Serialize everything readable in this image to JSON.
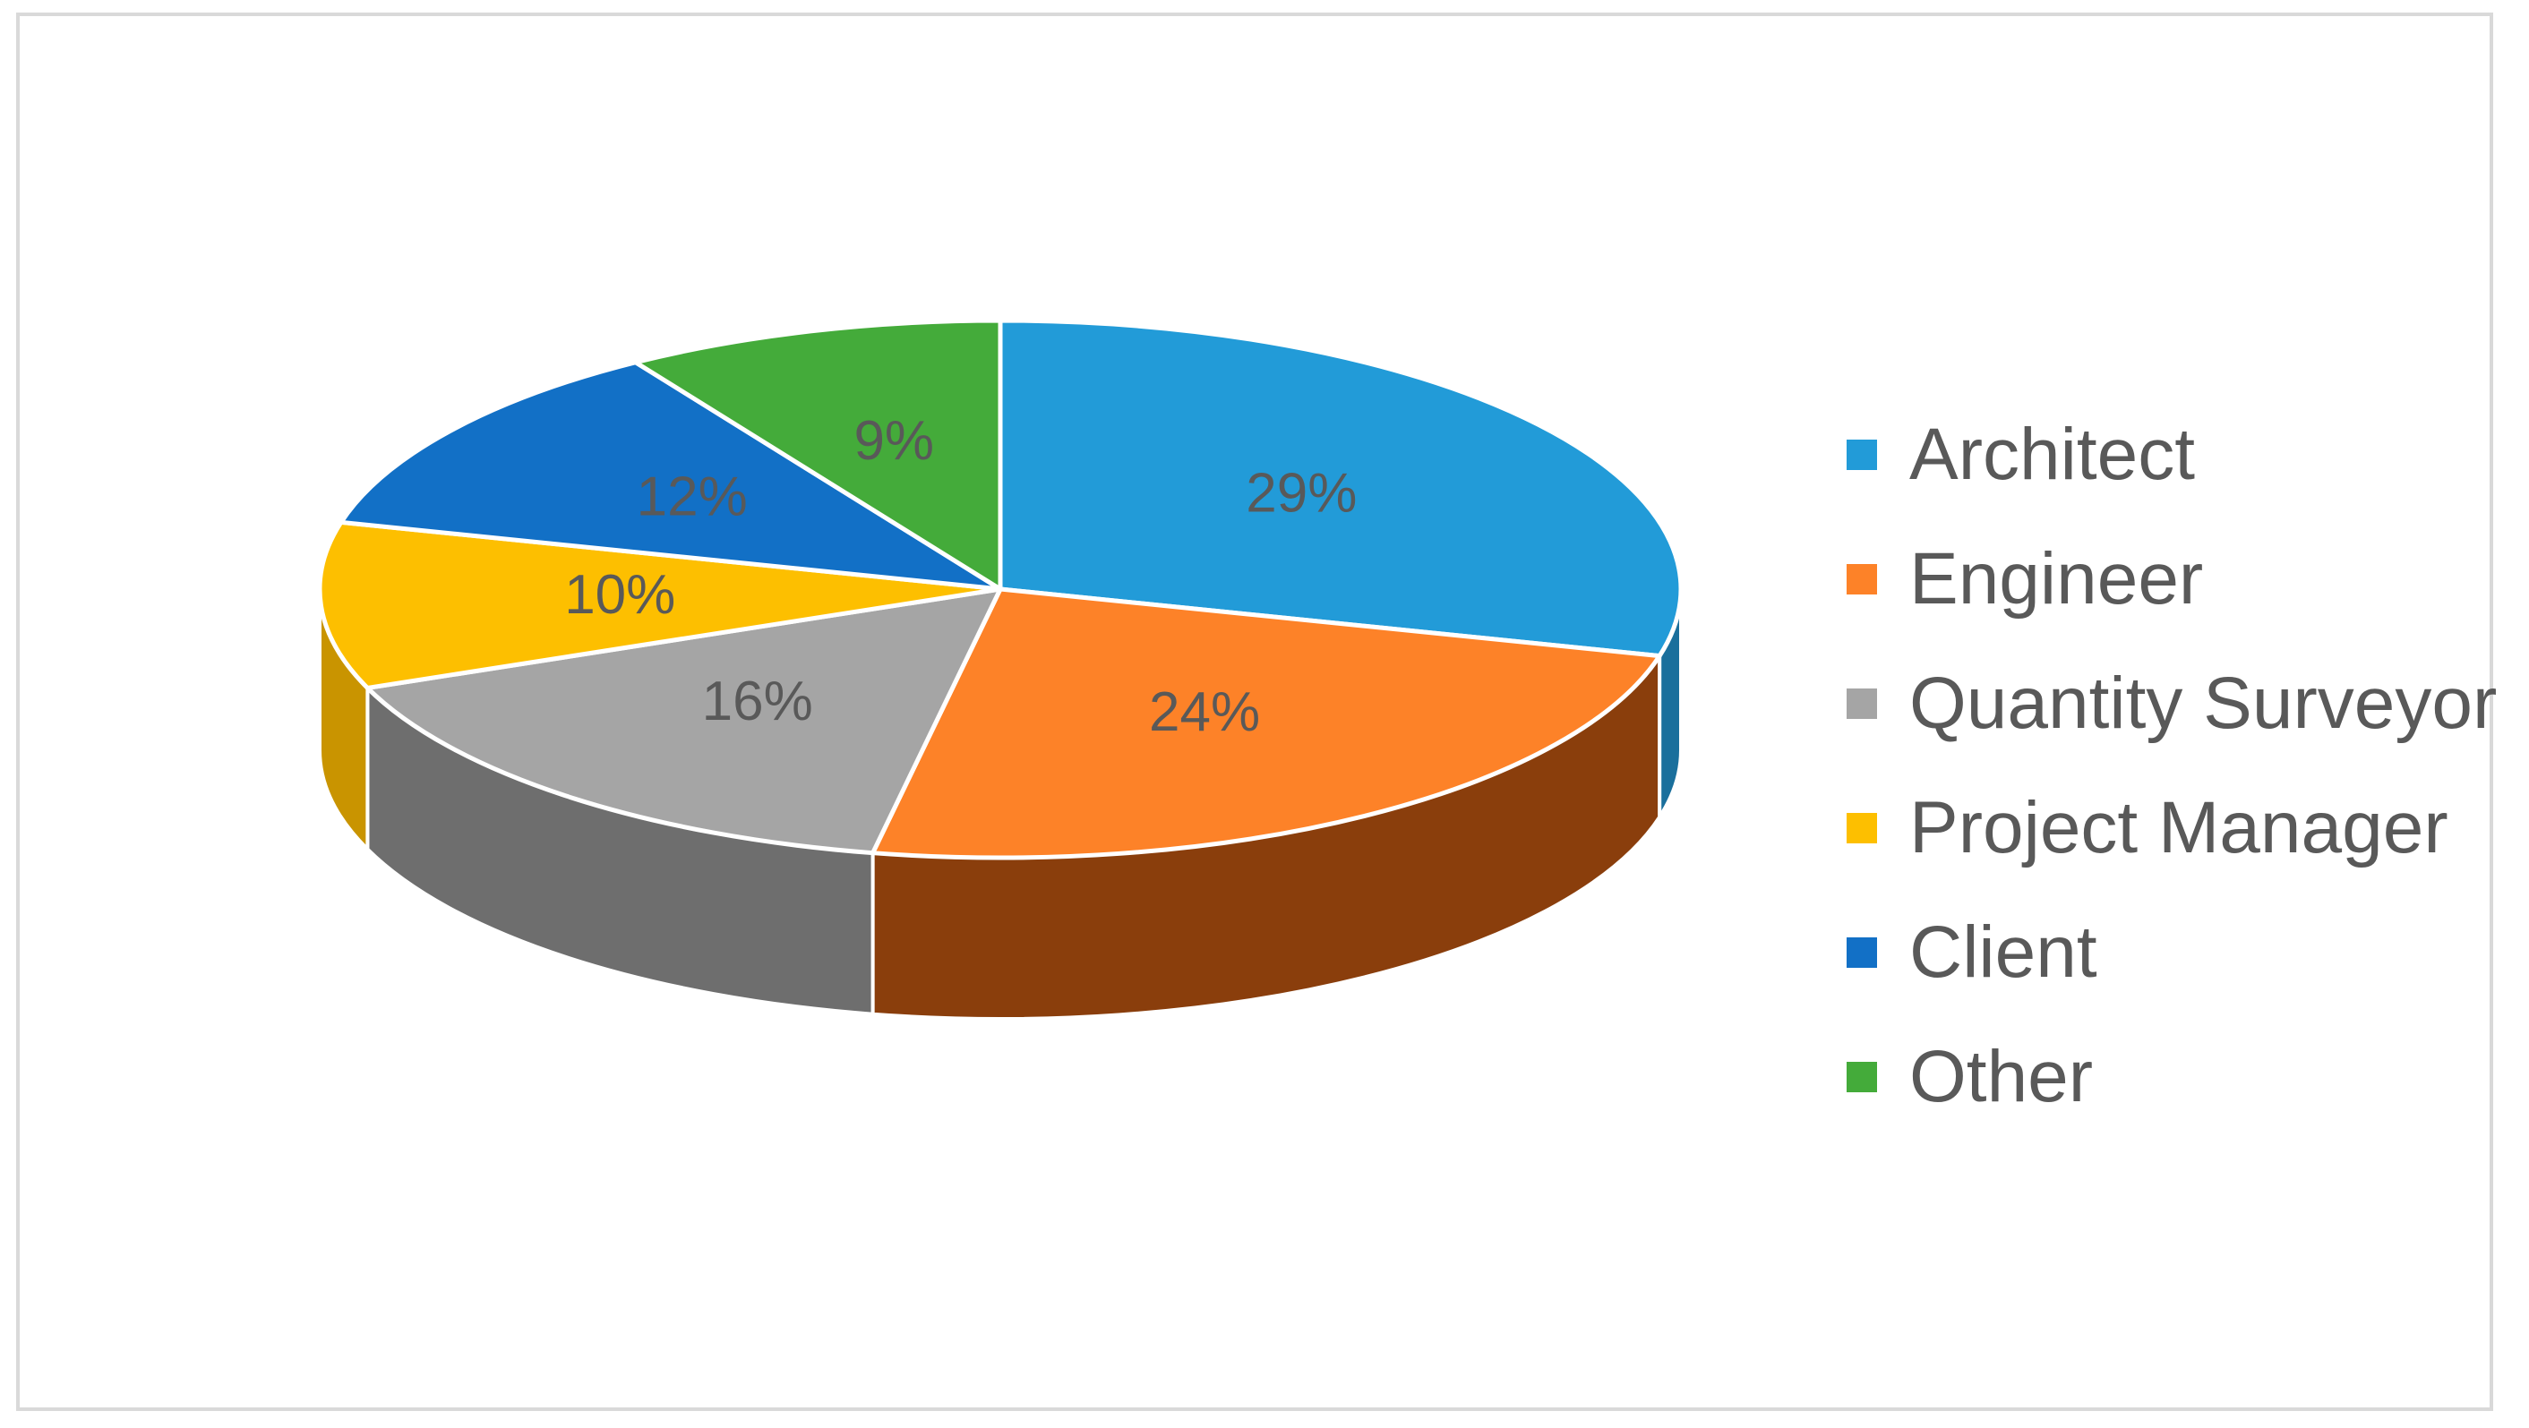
{
  "chart_data": {
    "type": "pie",
    "categories": [
      "Architect",
      "Engineer",
      "Quantity Surveyor",
      "Project Manager",
      "Client",
      "Other"
    ],
    "values": [
      29,
      24,
      16,
      10,
      12,
      9
    ],
    "labels": [
      "29%",
      "24%",
      "16%",
      "10%",
      "12%",
      "9%"
    ],
    "colors": [
      "#229bd8",
      "#fd8228",
      "#a5a5a5",
      "#fdbf00",
      "#1270c6",
      "#44ab3a"
    ],
    "side_colors": [
      "#1a6f9c",
      "#8a3e0c",
      "#6e6e6e",
      "#c99400",
      "#0c4f8e",
      "#2e7a28"
    ],
    "start_angle_deg": 0,
    "direction": "clockwise",
    "style": "3d",
    "legend_position": "right"
  }
}
